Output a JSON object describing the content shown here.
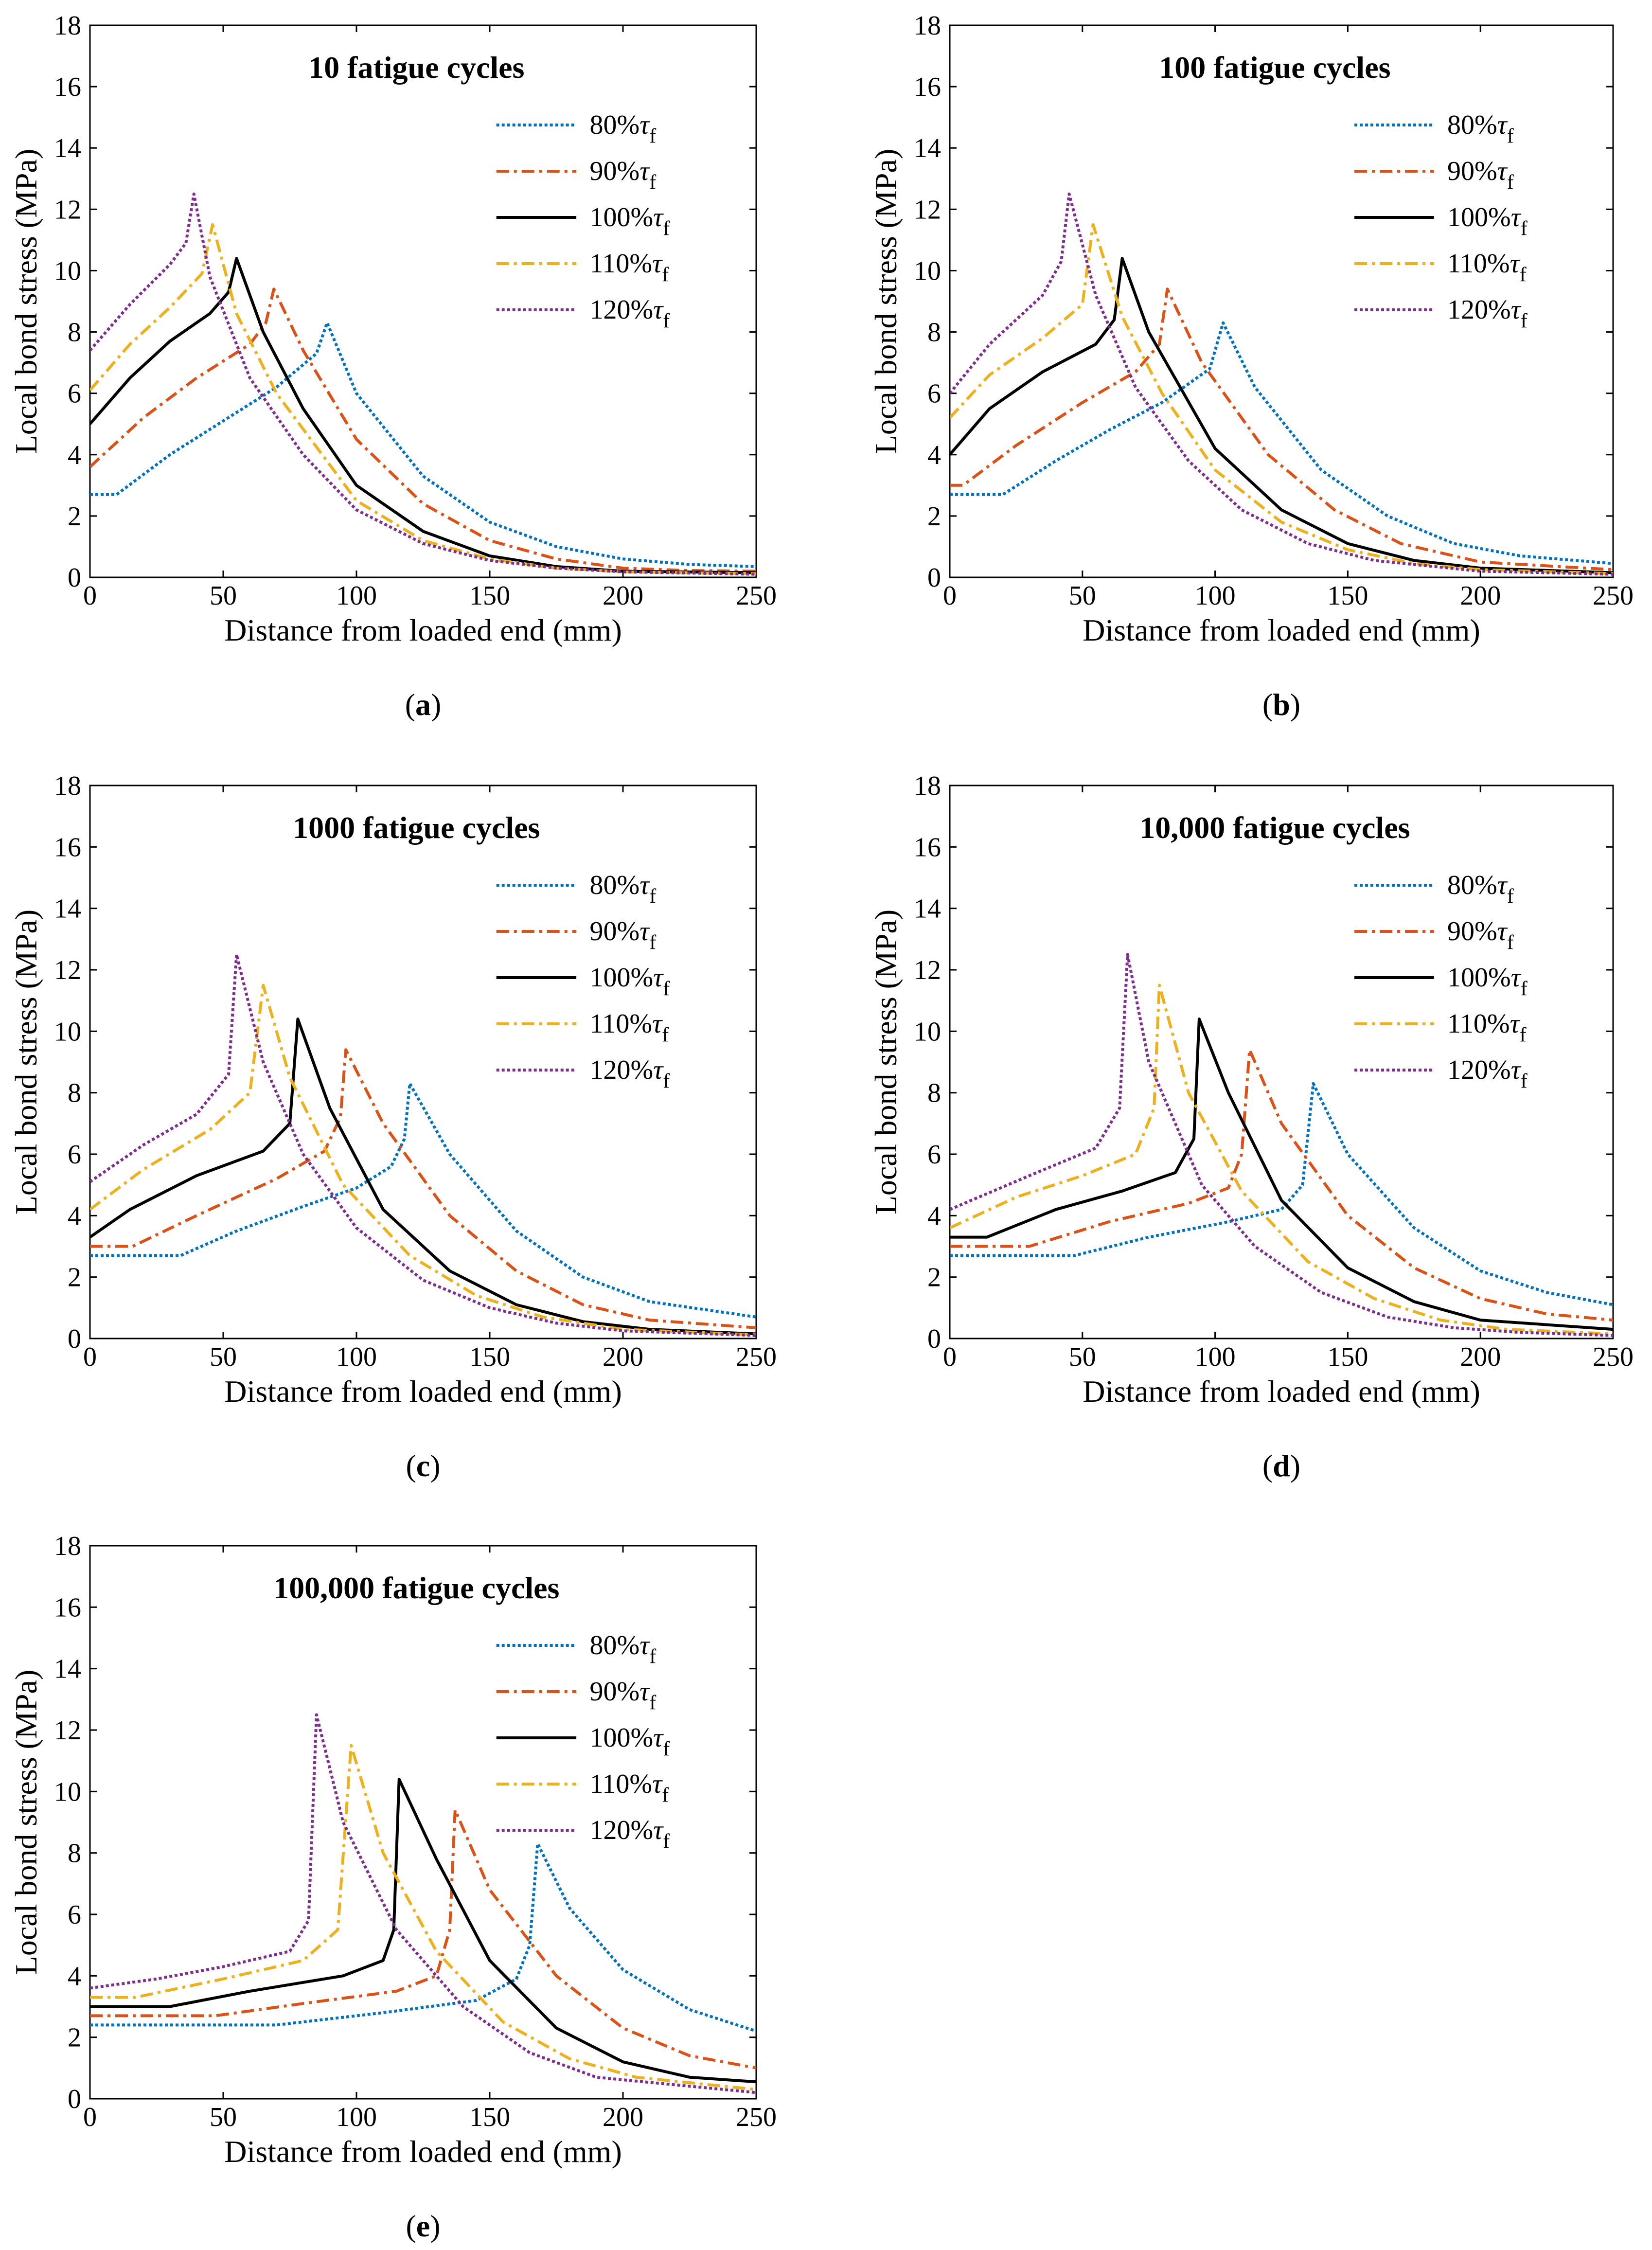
{
  "figure": {
    "x_label": "Distance from loaded end (mm)",
    "y_label": "Local bond stress (MPa)",
    "legend_unit_symbol": "τ",
    "legend_unit_subscript": "f"
  },
  "series_styles": [
    {
      "key": "80",
      "label": "80%",
      "color": "#0072BD",
      "dash": "dotted"
    },
    {
      "key": "90",
      "label": "90%",
      "color": "#D95319",
      "dash": "dashdot"
    },
    {
      "key": "100",
      "label": "100%",
      "color": "#000000",
      "dash": "solid"
    },
    {
      "key": "110",
      "label": "110%",
      "color": "#EDB120",
      "dash": "dashdot"
    },
    {
      "key": "120",
      "label": "120%",
      "color": "#7E2F8E",
      "dash": "dotted"
    }
  ],
  "chart_data": [
    {
      "panel_label": "a",
      "type": "line",
      "title": "10 fatigue cycles",
      "xlabel": "Distance from loaded end (mm)",
      "ylabel": "Local bond stress (MPa)",
      "xlim": [
        0,
        250
      ],
      "ylim": [
        0,
        18
      ],
      "xticks": [
        0,
        50,
        100,
        150,
        200,
        250
      ],
      "yticks": [
        0,
        2,
        4,
        6,
        8,
        10,
        12,
        14,
        16,
        18
      ],
      "legend_position": "top-right",
      "series": [
        {
          "name": "80%τf",
          "x": [
            0,
            10,
            30,
            50,
            70,
            85,
            89,
            100,
            125,
            150,
            175,
            200,
            225,
            250
          ],
          "y": [
            2.7,
            2.7,
            4.0,
            5.1,
            6.2,
            7.3,
            8.3,
            6.0,
            3.3,
            1.8,
            1.0,
            0.6,
            0.42,
            0.35
          ]
        },
        {
          "name": "90%τf",
          "x": [
            0,
            20,
            40,
            60,
            66,
            69,
            80,
            100,
            125,
            150,
            175,
            200,
            225,
            250
          ],
          "y": [
            3.6,
            5.2,
            6.5,
            7.6,
            8.3,
            9.4,
            7.4,
            4.5,
            2.4,
            1.2,
            0.6,
            0.3,
            0.22,
            0.2
          ]
        },
        {
          "name": "100%τf",
          "x": [
            0,
            15,
            30,
            45,
            52,
            55,
            65,
            80,
            100,
            125,
            150,
            175,
            200,
            250
          ],
          "y": [
            5.0,
            6.5,
            7.7,
            8.6,
            9.3,
            10.4,
            8.0,
            5.5,
            3.0,
            1.5,
            0.7,
            0.35,
            0.2,
            0.15
          ]
        },
        {
          "name": "110%τf",
          "x": [
            0,
            15,
            30,
            42,
            46,
            55,
            70,
            100,
            125,
            150,
            175,
            200,
            250
          ],
          "y": [
            6.1,
            7.6,
            8.8,
            9.9,
            11.5,
            8.6,
            6.0,
            2.5,
            1.2,
            0.6,
            0.3,
            0.18,
            0.12
          ]
        },
        {
          "name": "120%τf",
          "x": [
            0,
            15,
            30,
            36,
            39,
            45,
            60,
            80,
            100,
            125,
            150,
            175,
            200,
            250
          ],
          "y": [
            7.4,
            8.9,
            10.2,
            10.9,
            12.5,
            9.8,
            6.5,
            4.0,
            2.2,
            1.1,
            0.55,
            0.3,
            0.18,
            0.1
          ]
        }
      ]
    },
    {
      "panel_label": "b",
      "type": "line",
      "title": "100 fatigue cycles",
      "xlabel": "Distance from loaded end (mm)",
      "ylabel": "Local bond stress (MPa)",
      "xlim": [
        0,
        250
      ],
      "ylim": [
        0,
        18
      ],
      "xticks": [
        0,
        50,
        100,
        150,
        200,
        250
      ],
      "yticks": [
        0,
        2,
        4,
        6,
        8,
        10,
        12,
        14,
        16,
        18
      ],
      "legend_position": "top-right",
      "series": [
        {
          "name": "80%τf",
          "x": [
            0,
            20,
            40,
            60,
            80,
            98,
            103,
            115,
            140,
            165,
            190,
            215,
            250
          ],
          "y": [
            2.7,
            2.7,
            3.8,
            4.8,
            5.7,
            6.8,
            8.3,
            6.2,
            3.5,
            2.0,
            1.1,
            0.7,
            0.45
          ]
        },
        {
          "name": "90%τf",
          "x": [
            0,
            5,
            25,
            50,
            70,
            79,
            82,
            95,
            120,
            145,
            170,
            200,
            250
          ],
          "y": [
            3.0,
            3.0,
            4.3,
            5.7,
            6.7,
            7.6,
            9.4,
            7.0,
            4.0,
            2.2,
            1.1,
            0.5,
            0.25
          ]
        },
        {
          "name": "100%τf",
          "x": [
            0,
            15,
            35,
            55,
            62,
            65,
            75,
            100,
            125,
            150,
            175,
            200,
            250
          ],
          "y": [
            4.0,
            5.5,
            6.7,
            7.6,
            8.4,
            10.4,
            8.0,
            4.2,
            2.2,
            1.1,
            0.55,
            0.3,
            0.15
          ]
        },
        {
          "name": "110%τf",
          "x": [
            0,
            15,
            35,
            50,
            54,
            65,
            80,
            100,
            125,
            150,
            175,
            200,
            250
          ],
          "y": [
            5.2,
            6.6,
            7.8,
            8.9,
            11.5,
            8.5,
            6.0,
            3.5,
            1.8,
            0.9,
            0.45,
            0.25,
            0.12
          ]
        },
        {
          "name": "120%τf",
          "x": [
            0,
            15,
            35,
            42,
            45,
            55,
            70,
            90,
            110,
            135,
            160,
            200,
            250
          ],
          "y": [
            6.0,
            7.6,
            9.2,
            10.3,
            12.5,
            9.2,
            6.2,
            3.8,
            2.2,
            1.1,
            0.55,
            0.2,
            0.1
          ]
        }
      ]
    },
    {
      "panel_label": "c",
      "type": "line",
      "title": "1000 fatigue cycles",
      "xlabel": "Distance from loaded end (mm)",
      "ylabel": "Local bond stress (MPa)",
      "xlim": [
        0,
        250
      ],
      "ylim": [
        0,
        18
      ],
      "xticks": [
        0,
        50,
        100,
        150,
        200,
        250
      ],
      "yticks": [
        0,
        2,
        4,
        6,
        8,
        10,
        12,
        14,
        16,
        18
      ],
      "legend_position": "top-right",
      "series": [
        {
          "name": "80%τf",
          "x": [
            0,
            34,
            55,
            80,
            100,
            113,
            118,
            120,
            135,
            160,
            185,
            210,
            250
          ],
          "y": [
            2.7,
            2.7,
            3.5,
            4.3,
            4.9,
            5.6,
            6.5,
            8.3,
            6.0,
            3.5,
            2.0,
            1.2,
            0.7
          ]
        },
        {
          "name": "90%τf",
          "x": [
            0,
            16,
            40,
            70,
            88,
            94,
            96,
            110,
            135,
            160,
            185,
            210,
            250
          ],
          "y": [
            3.0,
            3.0,
            4.0,
            5.2,
            6.1,
            7.2,
            9.4,
            7.0,
            4.0,
            2.2,
            1.1,
            0.6,
            0.35
          ]
        },
        {
          "name": "100%τf",
          "x": [
            0,
            15,
            40,
            65,
            75,
            78,
            90,
            110,
            135,
            160,
            185,
            210,
            250
          ],
          "y": [
            3.3,
            4.2,
            5.3,
            6.1,
            7.0,
            10.4,
            7.5,
            4.2,
            2.2,
            1.1,
            0.55,
            0.3,
            0.15
          ]
        },
        {
          "name": "110%τf",
          "x": [
            0,
            20,
            45,
            60,
            65,
            75,
            95,
            120,
            145,
            170,
            200,
            250
          ],
          "y": [
            4.2,
            5.5,
            6.8,
            8.0,
            11.5,
            8.5,
            5.0,
            2.7,
            1.4,
            0.7,
            0.3,
            0.12
          ]
        },
        {
          "name": "120%τf",
          "x": [
            0,
            20,
            40,
            52,
            55,
            65,
            80,
            100,
            125,
            150,
            175,
            200,
            250
          ],
          "y": [
            5.1,
            6.3,
            7.3,
            8.6,
            12.5,
            9.0,
            6.0,
            3.6,
            1.9,
            1.0,
            0.5,
            0.25,
            0.1
          ]
        }
      ]
    },
    {
      "panel_label": "d",
      "type": "line",
      "title": "10,000 fatigue cycles",
      "xlabel": "Distance from loaded end (mm)",
      "ylabel": "Local bond stress (MPa)",
      "xlim": [
        0,
        250
      ],
      "ylim": [
        0,
        18
      ],
      "xticks": [
        0,
        50,
        100,
        150,
        200,
        250
      ],
      "yticks": [
        0,
        2,
        4,
        6,
        8,
        10,
        12,
        14,
        16,
        18
      ],
      "legend_position": "top-right",
      "series": [
        {
          "name": "80%τf",
          "x": [
            0,
            47,
            75,
            105,
            125,
            133,
            137,
            150,
            175,
            200,
            225,
            250
          ],
          "y": [
            2.7,
            2.7,
            3.3,
            3.8,
            4.2,
            5.0,
            8.3,
            6.0,
            3.6,
            2.2,
            1.5,
            1.1
          ]
        },
        {
          "name": "90%τf",
          "x": [
            0,
            30,
            60,
            90,
            105,
            110,
            113,
            125,
            150,
            175,
            200,
            225,
            250
          ],
          "y": [
            3.0,
            3.0,
            3.8,
            4.4,
            4.9,
            6.0,
            9.4,
            7.0,
            4.0,
            2.3,
            1.3,
            0.8,
            0.6
          ]
        },
        {
          "name": "100%τf",
          "x": [
            0,
            14,
            40,
            65,
            85,
            92,
            94,
            105,
            125,
            150,
            175,
            200,
            250
          ],
          "y": [
            3.3,
            3.3,
            4.2,
            4.8,
            5.4,
            6.5,
            10.4,
            8.0,
            4.5,
            2.3,
            1.2,
            0.6,
            0.3
          ]
        },
        {
          "name": "110%τf",
          "x": [
            0,
            25,
            50,
            70,
            77,
            79,
            90,
            110,
            135,
            160,
            185,
            210,
            250
          ],
          "y": [
            3.6,
            4.6,
            5.3,
            6.0,
            7.5,
            11.5,
            8.0,
            4.8,
            2.5,
            1.3,
            0.6,
            0.3,
            0.15
          ]
        },
        {
          "name": "120%τf",
          "x": [
            0,
            30,
            55,
            64,
            67,
            75,
            95,
            115,
            140,
            165,
            190,
            215,
            250
          ],
          "y": [
            4.2,
            5.3,
            6.2,
            7.5,
            12.5,
            9.0,
            5.0,
            3.0,
            1.5,
            0.7,
            0.35,
            0.2,
            0.1
          ]
        }
      ]
    },
    {
      "panel_label": "e",
      "type": "line",
      "title": "100,000 fatigue cycles",
      "xlabel": "Distance from loaded end (mm)",
      "ylabel": "Local bond stress (MPa)",
      "xlim": [
        0,
        250
      ],
      "ylim": [
        0,
        18
      ],
      "xticks": [
        0,
        50,
        100,
        150,
        200,
        250
      ],
      "yticks": [
        0,
        2,
        4,
        6,
        8,
        10,
        12,
        14,
        16,
        18
      ],
      "legend_position": "top-right",
      "series": [
        {
          "name": "80%τf",
          "x": [
            0,
            70,
            110,
            145,
            160,
            165,
            168,
            180,
            200,
            225,
            250
          ],
          "y": [
            2.4,
            2.4,
            2.8,
            3.2,
            3.9,
            5.0,
            8.3,
            6.2,
            4.2,
            2.9,
            2.2
          ]
        },
        {
          "name": "90%τf",
          "x": [
            0,
            47,
            80,
            115,
            130,
            135,
            137,
            150,
            175,
            200,
            225,
            250
          ],
          "y": [
            2.7,
            2.7,
            3.1,
            3.5,
            4.0,
            5.5,
            9.4,
            6.8,
            4.0,
            2.3,
            1.4,
            1.0
          ]
        },
        {
          "name": "100%τf",
          "x": [
            0,
            30,
            60,
            95,
            110,
            114,
            116,
            130,
            150,
            175,
            200,
            225,
            250
          ],
          "y": [
            3.0,
            3.0,
            3.5,
            4.0,
            4.5,
            5.5,
            10.4,
            7.8,
            4.5,
            2.3,
            1.2,
            0.7,
            0.55
          ]
        },
        {
          "name": "110%τf",
          "x": [
            0,
            17,
            50,
            80,
            93,
            98,
            110,
            130,
            155,
            180,
            205,
            250
          ],
          "y": [
            3.3,
            3.3,
            3.9,
            4.5,
            5.5,
            11.5,
            8.0,
            4.8,
            2.5,
            1.3,
            0.7,
            0.3
          ]
        },
        {
          "name": "120%τf",
          "x": [
            0,
            25,
            50,
            75,
            82,
            85,
            95,
            115,
            140,
            165,
            190,
            250
          ],
          "y": [
            3.6,
            3.9,
            4.3,
            4.8,
            5.8,
            12.5,
            9.0,
            5.5,
            3.0,
            1.5,
            0.7,
            0.2
          ]
        }
      ]
    }
  ]
}
